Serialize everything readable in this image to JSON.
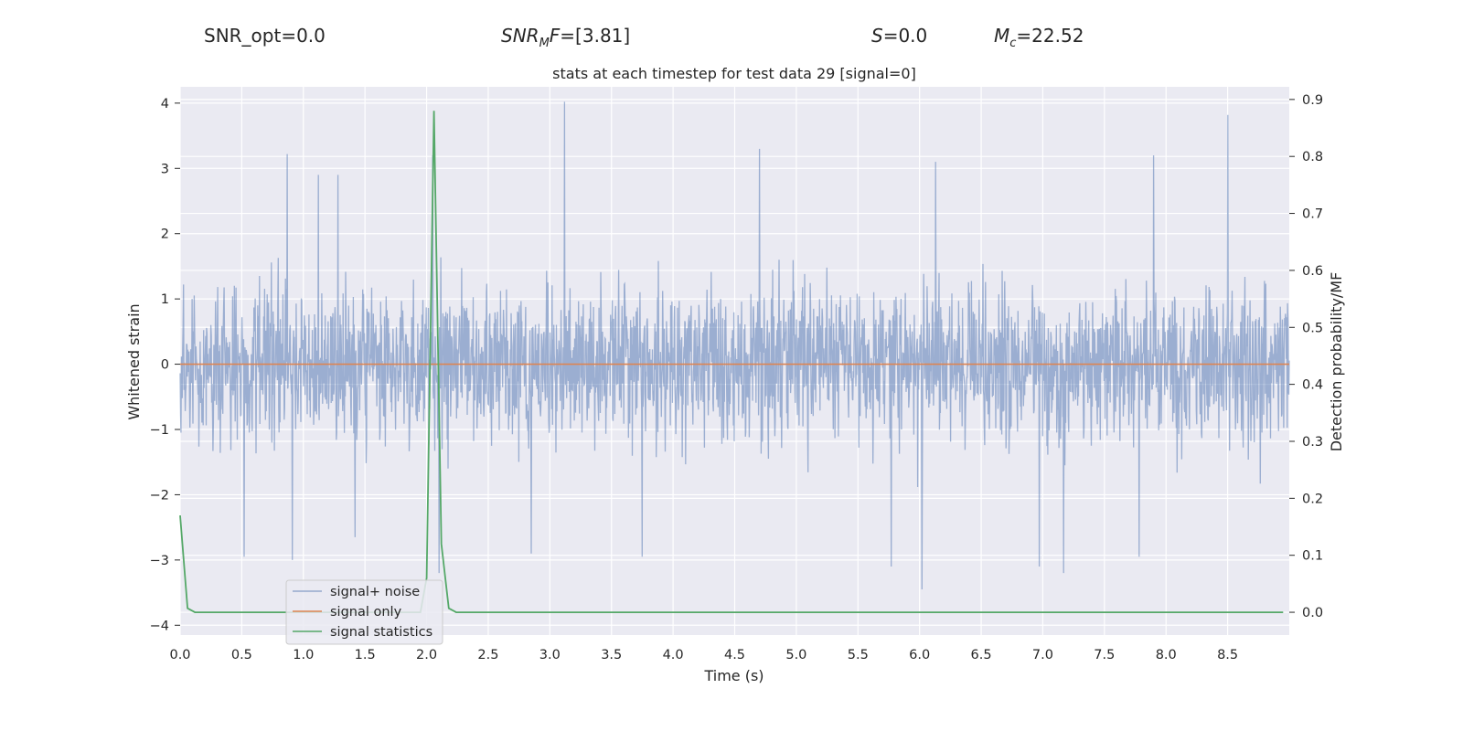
{
  "header": {
    "snr_opt": "SNR_opt=0.0",
    "snr_mf_name": "SNR",
    "snr_mf_sub": "M",
    "snr_mf_tail": "F",
    "snr_mf_value": "=[3.81]",
    "s_name": "S",
    "s_value": "=0.0",
    "mc_name": "M",
    "mc_sub": "c",
    "mc_value": "=22.52"
  },
  "chart_data": {
    "type": "line",
    "title": "stats at each timestep for test data 29 [signal=0]",
    "xlabel": "Time (s)",
    "ylabel": "Whitened strain",
    "ylabel_right": "Detection probability/MF",
    "xlim": [
      0.0,
      9.0
    ],
    "ylim": [
      -4.15,
      4.25
    ],
    "ylim_right": [
      -0.04,
      0.9222
    ],
    "xticks": [
      0.0,
      0.5,
      1.0,
      1.5,
      2.0,
      2.5,
      3.0,
      3.5,
      4.0,
      4.5,
      5.0,
      5.5,
      6.0,
      6.5,
      7.0,
      7.5,
      8.0,
      8.5
    ],
    "xtick_labels": [
      "0.0",
      "0.5",
      "1.0",
      "1.5",
      "2.0",
      "2.5",
      "3.0",
      "3.5",
      "4.0",
      "4.5",
      "5.0",
      "5.5",
      "6.0",
      "6.5",
      "7.0",
      "7.5",
      "8.0",
      "8.5"
    ],
    "yticks": [
      -4,
      -3,
      -2,
      -1,
      0,
      1,
      2,
      3,
      4
    ],
    "ytick_labels": [
      "−4",
      "−3",
      "−2",
      "−1",
      "0",
      "1",
      "2",
      "3",
      "4"
    ],
    "yticks_right": [
      0.0,
      0.1,
      0.2,
      0.3,
      0.4,
      0.5,
      0.6,
      0.7,
      0.8,
      0.9
    ],
    "ytick_labels_right": [
      "0.0",
      "0.1",
      "0.2",
      "0.3",
      "0.4",
      "0.5",
      "0.6",
      "0.7",
      "0.8",
      "0.9"
    ],
    "grid": true,
    "legend_position": "lower-left",
    "series": [
      {
        "name": "signal+ noise",
        "color": "#4c72b0",
        "axis": "left",
        "kind": "noise",
        "x_range": [
          0.0,
          9.0
        ],
        "envelope_typical": [
          -1.8,
          2.0
        ],
        "peaks": [
          {
            "x": 0.87,
            "y": 3.22
          },
          {
            "x": 1.12,
            "y": 2.9
          },
          {
            "x": 1.28,
            "y": 2.9
          },
          {
            "x": 2.05,
            "y": 3.2
          },
          {
            "x": 3.12,
            "y": 4.02
          },
          {
            "x": 4.7,
            "y": 3.3
          },
          {
            "x": 6.13,
            "y": 3.1
          },
          {
            "x": 7.9,
            "y": 3.2
          },
          {
            "x": 8.5,
            "y": 3.82
          },
          {
            "x": 0.52,
            "y": -2.95
          },
          {
            "x": 0.91,
            "y": -3.0
          },
          {
            "x": 1.42,
            "y": -2.65
          },
          {
            "x": 2.1,
            "y": -3.2
          },
          {
            "x": 2.85,
            "y": -2.9
          },
          {
            "x": 3.75,
            "y": -2.95
          },
          {
            "x": 5.77,
            "y": -3.1
          },
          {
            "x": 6.02,
            "y": -3.45
          },
          {
            "x": 6.97,
            "y": -3.1
          },
          {
            "x": 7.17,
            "y": -3.2
          },
          {
            "x": 7.78,
            "y": -2.95
          }
        ]
      },
      {
        "name": "signal only",
        "color": "#dd8452",
        "axis": "left",
        "x": [
          0.0,
          9.0
        ],
        "y": [
          0.0,
          0.0
        ]
      },
      {
        "name": "signal statistics",
        "color": "#55a868",
        "axis": "right",
        "x": [
          0.0,
          0.06,
          0.12,
          1.95,
          2.0,
          2.06,
          2.12,
          2.18,
          2.24,
          8.95
        ],
        "y": [
          0.17,
          0.007,
          0.0,
          0.0,
          0.06,
          0.88,
          0.12,
          0.007,
          0.0,
          0.0
        ]
      }
    ]
  }
}
